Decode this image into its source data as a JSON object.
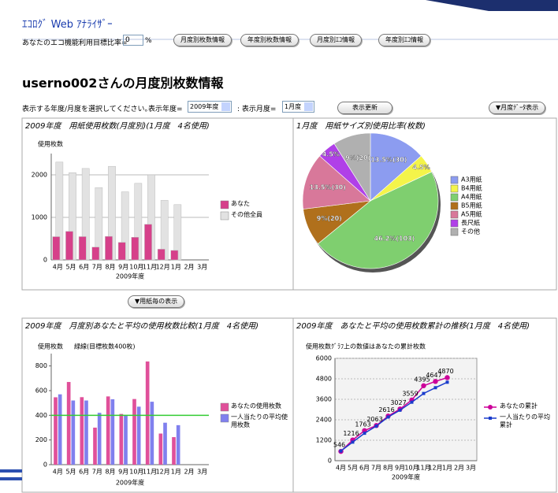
{
  "header": {
    "title": "ｴｺﾛｸﾞ Web ｱﾅﾗｲｻﾞｰ",
    "target_label": "あなたのエコ機能利用目標比率=",
    "target_value": "0",
    "target_unit": "%",
    "buttons": [
      "月度別枚数情報",
      "年度別枚数情報",
      "月度別ｴｺ情報",
      "年度別ｴｺ情報"
    ]
  },
  "heading": "userno002さんの月度別枚数情報",
  "controls": {
    "prompt": "表示する年度/月度を選択してください。",
    "year_label": "表示年度=",
    "year_value": "2009年度",
    "month_label": ": 表示月度=",
    "month_value": "1月度",
    "update_button": "表示更新",
    "monthly_button": "▼月度ﾃﾞｰﾀ表示"
  },
  "paper_button": "▼用紙毎の表示",
  "chart_data": [
    {
      "type": "bar",
      "overlap": true,
      "grid": true,
      "title": "2009年度　用紙使用枚数(月度別)(1月度　4名使用)",
      "y_label": "使用枚数",
      "x_label": "2009年度",
      "categories": [
        "4月",
        "5月",
        "6月",
        "7月",
        "8月",
        "9月",
        "10月",
        "11月",
        "12月",
        "1月",
        "2月",
        "3月"
      ],
      "series": [
        {
          "name": "あなた",
          "color": "#d6408a",
          "values": [
            546,
            670,
            547,
            300,
            553,
            411,
            532,
            836,
            252,
            223,
            null,
            null
          ]
        },
        {
          "name": "その他全員",
          "color": "#e2e2e2",
          "values": [
            2300,
            2050,
            2150,
            1700,
            2200,
            1600,
            1800,
            2000,
            1400,
            1300,
            null,
            null
          ]
        }
      ],
      "ylim": [
        0,
        2500
      ],
      "yticks": [
        0,
        1000,
        2000
      ]
    },
    {
      "type": "pie",
      "title": "1月度　用紙サイズ別使用比率(枚数)",
      "categories": [
        "A3用紙",
        "B4用紙",
        "A4用紙",
        "B5用紙",
        "A5用紙",
        "長尺紙",
        "その他"
      ],
      "values": [
        13.5,
        4.5,
        46.2,
        9,
        13.5,
        4.5,
        9
      ],
      "value_labels": [
        "13.5%(30)",
        "4.5%",
        "46.2%(103)",
        "9%(20)",
        "13.5%(30)",
        "4.5%",
        "9%(20)"
      ],
      "colors": [
        "#8c9cf0",
        "#f4f44a",
        "#7fcf6f",
        "#b0701c",
        "#d8789a",
        "#b040e8",
        "#b0b0b0"
      ]
    },
    {
      "type": "bar",
      "overlap": false,
      "grid": false,
      "title": "2009年度　月度別あなたと平均の使用枚数比較(1月度　4名使用)",
      "y_label": "使用枚数",
      "annotation": "緑線(目標枚数400枚)",
      "x_label": "2009年度",
      "categories": [
        "4月",
        "5月",
        "6月",
        "7月",
        "8月",
        "9月",
        "10月",
        "11月",
        "12月",
        "1月",
        "2月",
        "3月"
      ],
      "series": [
        {
          "name": "あなたの使用枚数",
          "color": "#e0509a",
          "values": [
            546,
            670,
            547,
            300,
            553,
            411,
            532,
            836,
            252,
            223,
            null,
            null
          ]
        },
        {
          "name": "一人当たりの平均使用枚数",
          "color": "#8080ee",
          "values": [
            570,
            520,
            520,
            420,
            530,
            400,
            470,
            510,
            340,
            320,
            null,
            null
          ]
        }
      ],
      "reference_line": {
        "value": 400,
        "color": "#33cc33"
      },
      "ylim": [
        0,
        900
      ],
      "yticks": [
        0,
        200,
        400,
        600,
        800
      ]
    },
    {
      "type": "line",
      "grid": true,
      "title": "2009年度　あなたと平均の使用枚数累計の推移(1月度　4名使用)",
      "y_label": "使用枚数",
      "annotation": "ｸﾞﾗﾌ上の数値はあなたの累計枚数",
      "x_label": "2009年度",
      "categories": [
        "4月",
        "5月",
        "6月",
        "7月",
        "8月",
        "9月",
        "10月",
        "11月",
        "12月",
        "1月",
        "2月",
        "3月"
      ],
      "series": [
        {
          "name": "あなたの累計",
          "color": "#cc0099",
          "marker": "circle",
          "data_labels": true,
          "values": [
            546,
            1216,
            1763,
            2063,
            2616,
            3027,
            3559,
            4395,
            4647,
            4870,
            null,
            null
          ]
        },
        {
          "name": "一人当たりの平均累計",
          "color": "#1a3ccc",
          "marker": "square",
          "values": [
            570,
            1090,
            1610,
            2030,
            2560,
            2960,
            3430,
            3940,
            4280,
            4600,
            null,
            null
          ]
        }
      ],
      "ylim": [
        0,
        6000
      ],
      "yticks": [
        0,
        1200,
        2400,
        3600,
        4800,
        6000
      ]
    }
  ]
}
